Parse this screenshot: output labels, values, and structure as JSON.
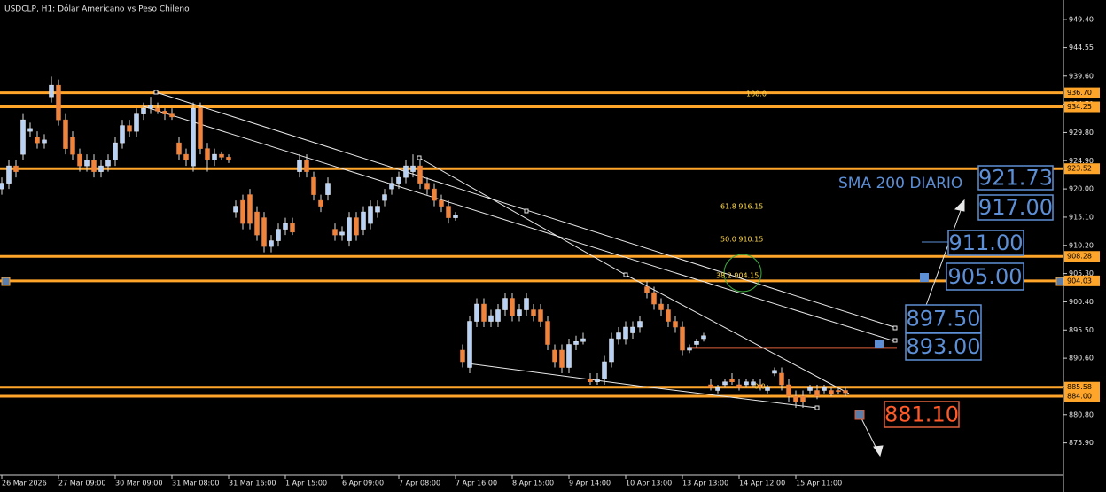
{
  "chart_data": {
    "type": "candlestick",
    "title": "USDCLP, H1:  Dólar Americano vs Peso Chileno",
    "ylim": [
      870.3,
      952.8
    ],
    "yticks": [
      {
        "value": 949.4,
        "label": "949.40"
      },
      {
        "value": 944.55,
        "label": "944.55"
      },
      {
        "value": 939.6,
        "label": "939.60"
      },
      {
        "value": 934.7,
        "label": "934.70"
      },
      {
        "value": 929.8,
        "label": "929.80"
      },
      {
        "value": 924.9,
        "label": "924.90"
      },
      {
        "value": 920,
        "label": "920.00"
      },
      {
        "value": 915.1,
        "label": "915.10"
      },
      {
        "value": 910.2,
        "label": "910.20"
      },
      {
        "value": 905.3,
        "label": "905.30"
      },
      {
        "value": 900.4,
        "label": "900.40"
      },
      {
        "value": 895.5,
        "label": "895.50"
      },
      {
        "value": 890.6,
        "label": "890.60"
      },
      {
        "value": 885.7,
        "label": "885.70"
      },
      {
        "value": 880.8,
        "label": "880.80"
      },
      {
        "value": 875.9,
        "label": "875.90"
      }
    ],
    "categories": [
      "26 Mar 2026",
      null,
      null,
      null,
      null,
      null,
      null,
      null,
      "27 Mar 09:00",
      null,
      null,
      null,
      null,
      null,
      null,
      null,
      "30 Mar 09:00",
      null,
      null,
      null,
      null,
      null,
      null,
      null,
      "31 Mar 08:00",
      null,
      null,
      null,
      null,
      null,
      null,
      null,
      "31 Mar 16:00",
      null,
      null,
      null,
      null,
      null,
      null,
      null,
      "1 Apr 15:00",
      null,
      null,
      null,
      null,
      null,
      null,
      null,
      "6 Apr 09:00",
      null,
      null,
      null,
      null,
      null,
      null,
      null,
      "7 Apr 08:00",
      null,
      null,
      null,
      null,
      null,
      null,
      null,
      "7 Apr 16:00",
      null,
      null,
      null,
      null,
      null,
      null,
      null,
      "8 Apr 15:00",
      null,
      null,
      null,
      null,
      null,
      null,
      null,
      "9 Apr 14:00",
      null,
      null,
      null,
      null,
      null,
      null,
      null,
      "10 Apr 13:00",
      null,
      null,
      null,
      null,
      null,
      null,
      null,
      "13 Apr 13:00",
      null,
      null,
      null,
      null,
      null,
      null,
      null,
      "14 Apr 12:00",
      null,
      null,
      null,
      null,
      null,
      null,
      null,
      "15 Apr 11:00",
      null,
      null,
      null,
      null,
      null,
      null,
      null
    ],
    "open": [
      920,
      921,
      924,
      926,
      930,
      929,
      928,
      936,
      938,
      932,
      929,
      926,
      924,
      925,
      923,
      924,
      925,
      928,
      931,
      930,
      933,
      934,
      934,
      933.5,
      933,
      928,
      926,
      924,
      934,
      927,
      925,
      926,
      925.5,
      916,
      918,
      919,
      916,
      915,
      910,
      911,
      913,
      914,
      923,
      925,
      922,
      918,
      919,
      913,
      912,
      911,
      915,
      913,
      914,
      916,
      918,
      920,
      921,
      922,
      923,
      924,
      921,
      920,
      918,
      917,
      915,
      892,
      889,
      897,
      900,
      897,
      897,
      899,
      901,
      898,
      899,
      899,
      899,
      897,
      892,
      892,
      889,
      893,
      893.5,
      887,
      886.5,
      887,
      890,
      894,
      894,
      895,
      896,
      903,
      902,
      900,
      899,
      897,
      896,
      892,
      893,
      894,
      886,
      885,
      886,
      887,
      886,
      886,
      886,
      886,
      885,
      888,
      888,
      886,
      884,
      884,
      885,
      885,
      885,
      885,
      885,
      885
    ],
    "high": [
      922,
      925,
      925,
      933,
      931.5,
      930,
      929.5,
      939.5,
      939,
      933,
      930,
      927,
      926,
      926,
      925,
      926,
      929,
      932,
      932,
      934,
      935,
      936,
      935,
      934,
      934,
      929,
      927,
      935,
      935,
      928,
      927,
      926.5,
      926,
      918,
      919,
      920,
      917,
      916,
      912,
      914,
      915,
      915,
      926,
      926,
      923,
      919,
      922,
      914,
      913.5,
      916,
      916,
      917,
      918,
      918,
      920,
      922,
      923,
      925,
      926,
      925,
      922,
      921,
      919,
      918,
      916,
      893,
      898,
      901,
      901,
      899,
      900,
      902,
      902,
      900,
      902,
      900,
      900,
      898,
      893,
      893,
      894,
      894.5,
      895,
      888,
      888,
      891,
      895,
      896,
      897,
      897,
      898,
      904,
      903,
      901,
      900,
      898,
      897,
      893,
      894,
      895,
      887,
      886,
      887,
      888,
      887,
      887,
      887,
      887,
      886,
      889,
      889,
      887,
      885,
      885,
      886,
      886,
      886,
      885.5,
      885.5,
      885.5
    ],
    "low": [
      919,
      920,
      922,
      925,
      929,
      927,
      927,
      935,
      931,
      926,
      925,
      923,
      923,
      922,
      922,
      923,
      924,
      927,
      929,
      929,
      932,
      933,
      933,
      932,
      932,
      925,
      924,
      923,
      926,
      923,
      924,
      925,
      924.5,
      915,
      913,
      913,
      911,
      909,
      909,
      910,
      912,
      912,
      922,
      922,
      918,
      916,
      918,
      911,
      911,
      910,
      911,
      912,
      913,
      915,
      917,
      919,
      920,
      921,
      922,
      920,
      919,
      917,
      916,
      914,
      914.5,
      889,
      888,
      896,
      896,
      896,
      896,
      898,
      897,
      897,
      898,
      897,
      896,
      892,
      889,
      888,
      888,
      892,
      893,
      886,
      886,
      886,
      889,
      893,
      893,
      894,
      895,
      901,
      899,
      898,
      896,
      895,
      891,
      891.5,
      892.5,
      893.5,
      885,
      884.5,
      885.5,
      886,
      885,
      885.5,
      885.5,
      885,
      884.5,
      887.5,
      885,
      883,
      882,
      882,
      884.5,
      883.5,
      884.5,
      884,
      884.3,
      884
    ],
    "close": [
      921,
      924,
      923,
      932,
      930.5,
      928,
      928.5,
      938,
      932,
      927,
      926,
      924,
      925,
      923,
      924,
      925,
      928,
      931,
      930,
      933,
      934,
      934.5,
      933.5,
      933,
      932.5,
      926,
      925,
      934,
      927,
      925,
      926,
      925.5,
      925,
      917,
      914,
      914,
      912,
      910,
      911,
      913,
      914,
      912.5,
      925,
      923,
      919,
      917,
      921,
      912,
      912.5,
      915,
      912,
      916,
      917,
      917,
      919,
      921,
      922,
      924,
      924,
      921,
      920,
      918,
      917,
      915,
      915.5,
      890,
      897,
      900,
      897,
      898,
      899,
      901,
      898,
      899,
      901,
      898,
      897,
      893,
      890,
      889,
      893,
      893.5,
      894,
      886.5,
      887,
      890,
      894,
      895,
      896,
      896,
      897,
      902,
      900,
      899,
      897,
      896,
      892,
      892.5,
      893.5,
      894.5,
      885.5,
      885.5,
      886.5,
      886.5,
      885.5,
      886.5,
      886.5,
      885.5,
      885.5,
      888.5,
      886,
      884,
      883,
      883,
      885.5,
      884,
      885.5,
      884.5,
      884.8,
      884.6
    ],
    "up_color": "#b9d1f2",
    "down_color": "#f0843c",
    "levels": [
      {
        "value": 936.7,
        "label": "936.70"
      },
      {
        "value": 934.25,
        "label": "934.25"
      },
      {
        "value": 923.52,
        "label": "923.52"
      },
      {
        "value": 908.28,
        "label": "908.28"
      },
      {
        "value": 904.03,
        "label": "904.03"
      },
      {
        "value": 885.58,
        "label": "885.58"
      },
      {
        "value": 884,
        "label": "884.00"
      }
    ],
    "level_color": "#ffa52a",
    "support_line": 892.4,
    "support_color": "#e0603a",
    "fib_labels": [
      "100.0",
      "61.8  916.15",
      "50.0  910.15",
      "38.2  904.15",
      "0.0"
    ],
    "sma_label": "SMA 200 DIARIO",
    "targets": [
      "921.73",
      "917.00",
      "911.00",
      "905.00",
      "897.50",
      "893.00",
      "881.10"
    ]
  }
}
